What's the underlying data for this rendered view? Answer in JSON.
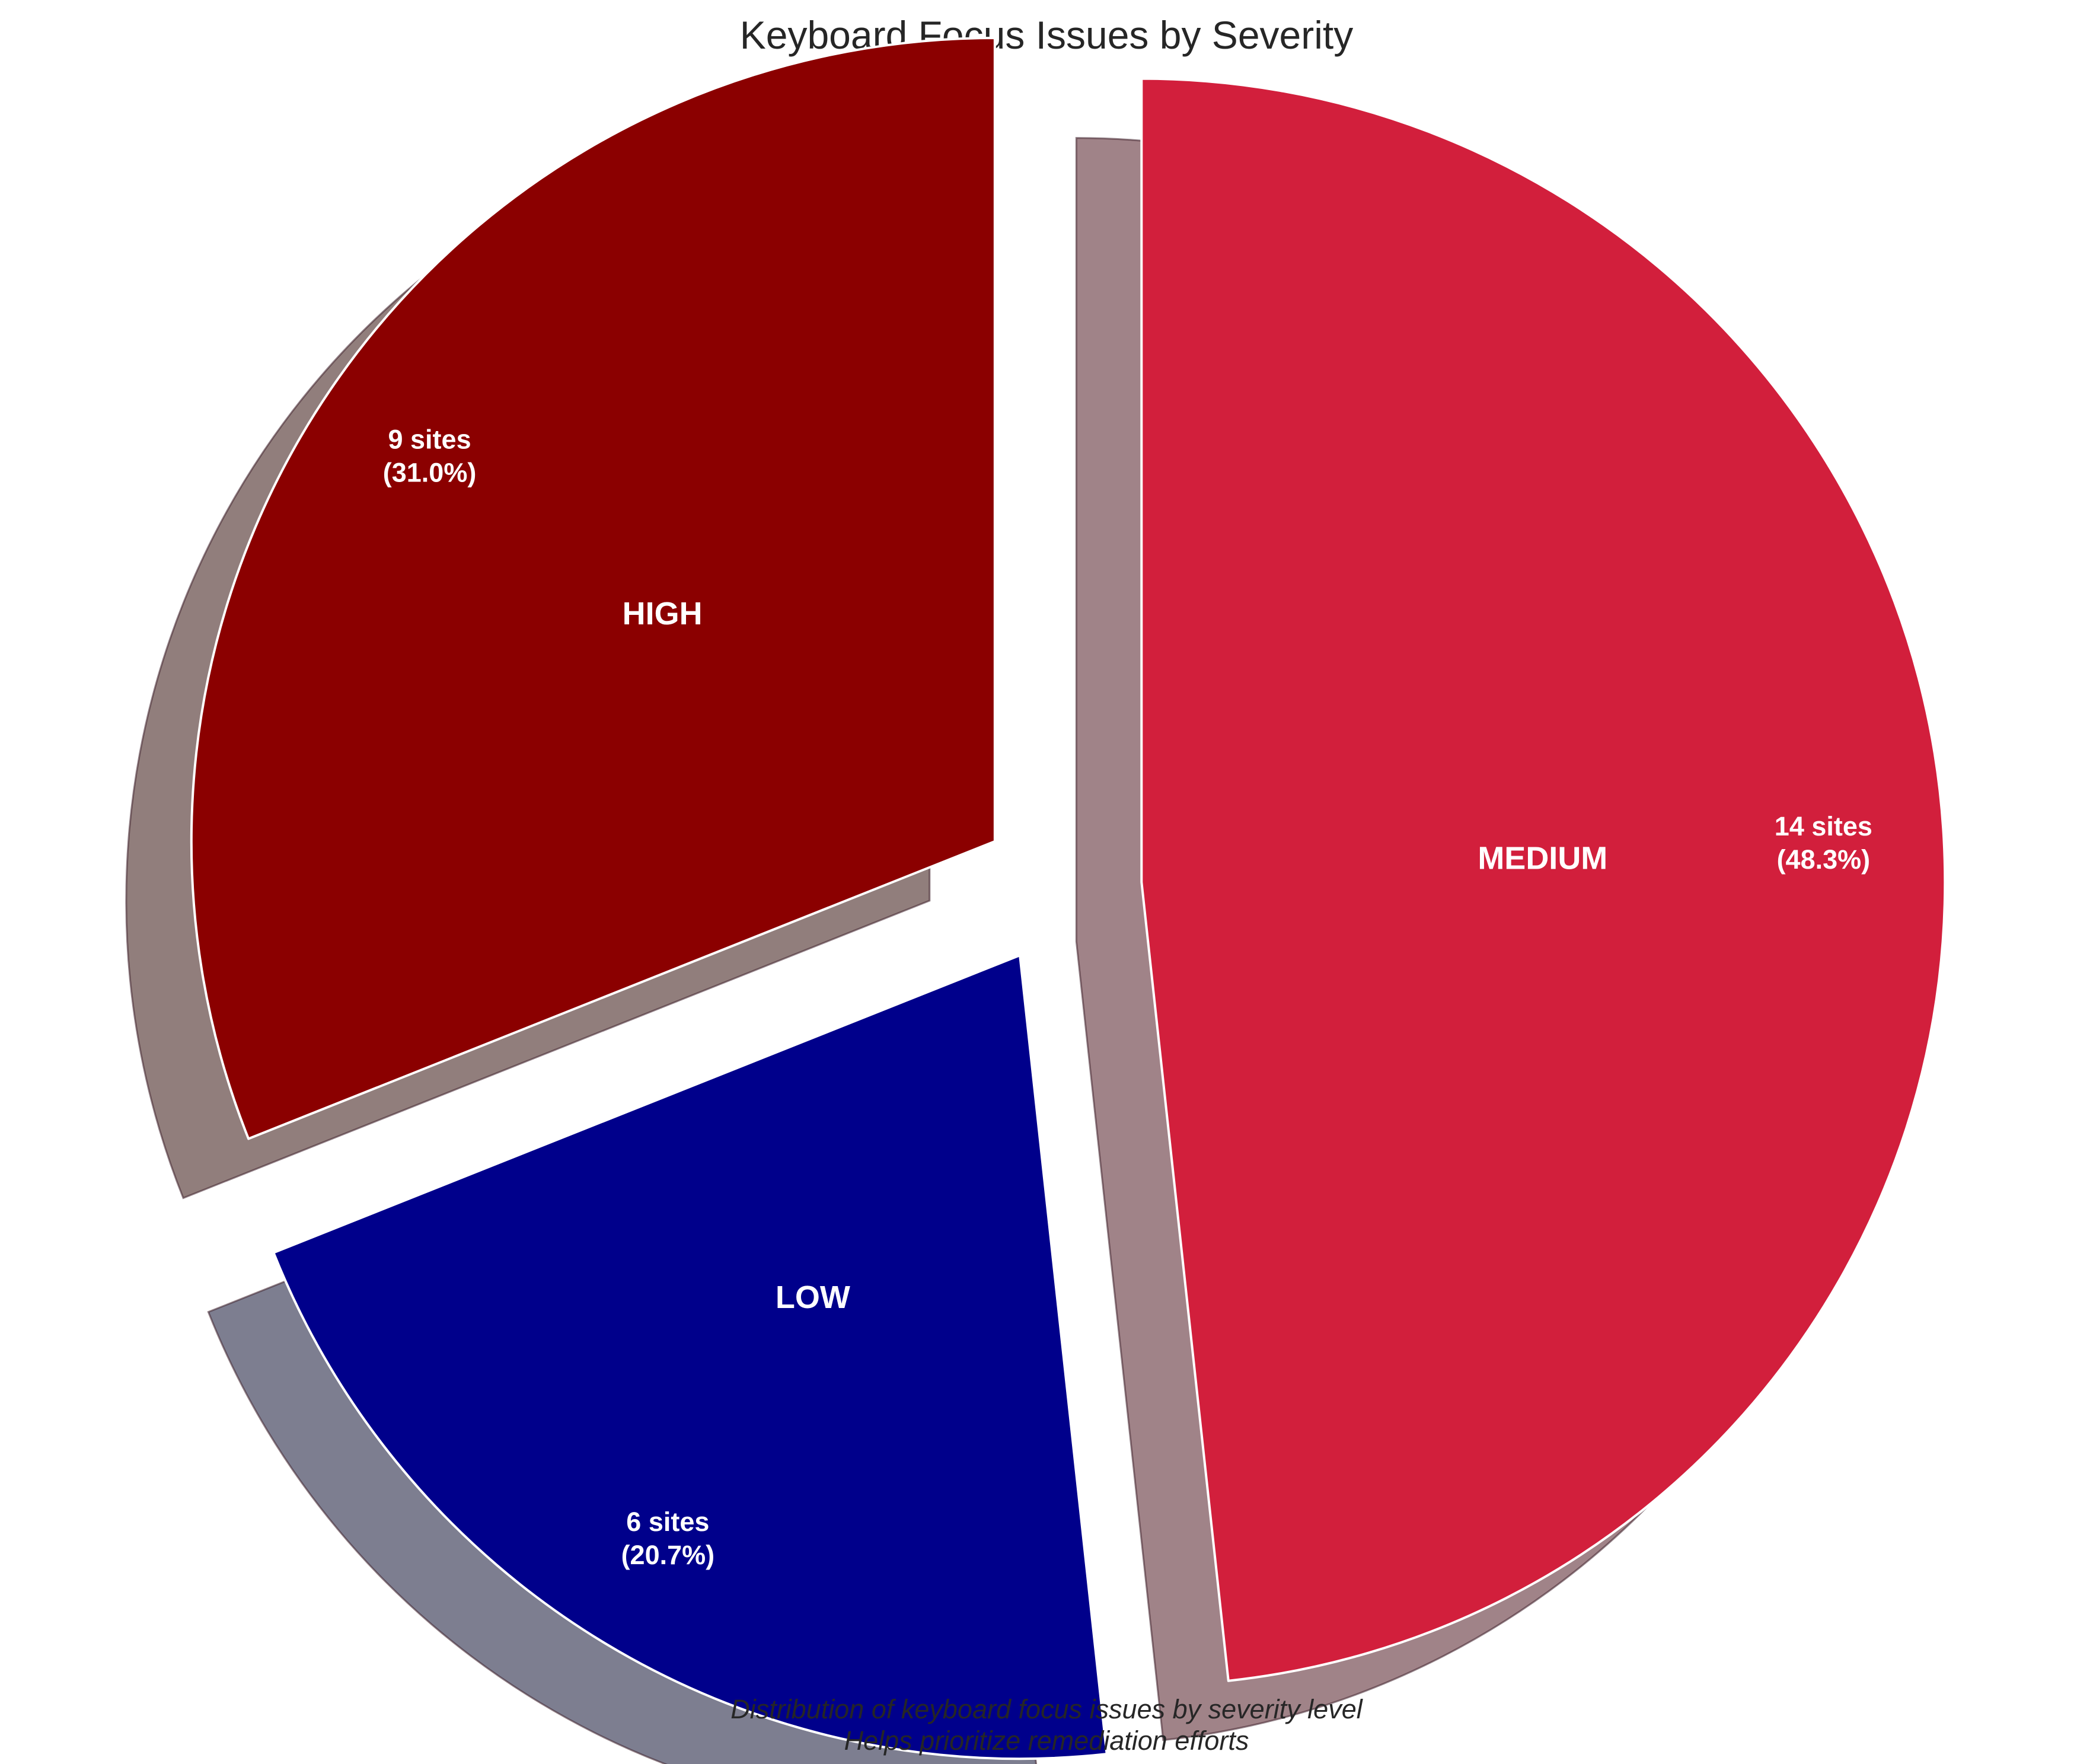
{
  "chart_data": {
    "type": "pie",
    "title": "Keyboard Focus Issues by Severity",
    "unit": "sites",
    "slices": [
      {
        "category": "HIGH",
        "value": 9,
        "percent": "31.0%",
        "color": "#8b0000",
        "shadow_color": "#917e7c",
        "exploded": true
      },
      {
        "category": "LOW",
        "value": 6,
        "percent": "20.7%",
        "color": "#00008b",
        "shadow_color": "#7d7e90",
        "exploded": true
      },
      {
        "category": "MEDIUM",
        "value": 14,
        "percent": "48.3%",
        "color": "#d21f3c",
        "shadow_color": "#a08388",
        "exploded": true
      }
    ],
    "start_angle_deg": 90,
    "direction": "counterclockwise",
    "shadow": true,
    "slice_edge_color": "#ffffff",
    "caption": [
      "Distribution of keyboard focus issues by severity level",
      "Helps prioritize remediation efforts"
    ]
  }
}
